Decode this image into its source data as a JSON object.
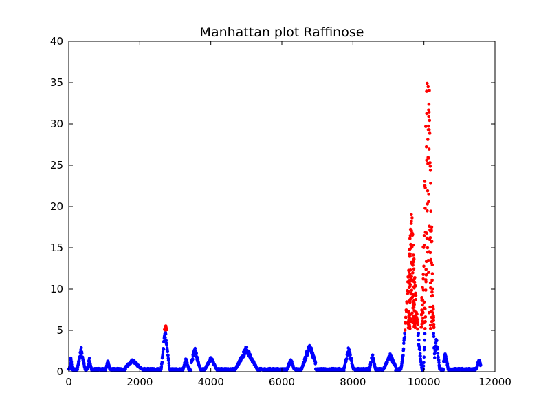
{
  "chart_data": {
    "type": "scatter",
    "title": "Manhattan plot Raffinose",
    "xlabel": "",
    "ylabel": "",
    "xlim": [
      0,
      12000
    ],
    "ylim": [
      0,
      40
    ],
    "x_ticks": [
      0,
      2000,
      4000,
      6000,
      8000,
      10000,
      12000
    ],
    "y_ticks": [
      0,
      5,
      10,
      15,
      20,
      25,
      30,
      35,
      40
    ],
    "grid": false,
    "legend": "none",
    "marker_count": 11600,
    "colors": {
      "below_threshold": "#0000ff",
      "above_threshold": "#ff0000"
    },
    "threshold": 5,
    "peaks": [
      {
        "x_start": 0,
        "x_end": 100,
        "peak_x": 60,
        "peak_y": 1.9
      },
      {
        "x_start": 250,
        "x_end": 500,
        "peak_x": 350,
        "peak_y": 3.0
      },
      {
        "x_start": 500,
        "x_end": 650,
        "peak_x": 580,
        "peak_y": 1.7
      },
      {
        "x_start": 1050,
        "x_end": 1200,
        "peak_x": 1100,
        "peak_y": 1.5
      },
      {
        "x_start": 1600,
        "x_end": 2300,
        "peak_x": 1800,
        "peak_y": 1.5
      },
      {
        "x_start": 2600,
        "x_end": 2850,
        "peak_x": 2720,
        "peak_y": 5.6
      },
      {
        "x_start": 3200,
        "x_end": 3400,
        "peak_x": 3300,
        "peak_y": 1.7
      },
      {
        "x_start": 3450,
        "x_end": 3800,
        "peak_x": 3550,
        "peak_y": 3.0
      },
      {
        "x_start": 3800,
        "x_end": 4200,
        "peak_x": 4000,
        "peak_y": 1.9
      },
      {
        "x_start": 4700,
        "x_end": 5400,
        "peak_x": 5000,
        "peak_y": 3.1
      },
      {
        "x_start": 6150,
        "x_end": 6400,
        "peak_x": 6250,
        "peak_y": 1.6
      },
      {
        "x_start": 6450,
        "x_end": 6950,
        "peak_x": 6780,
        "peak_y": 3.6
      },
      {
        "x_start": 7750,
        "x_end": 8050,
        "peak_x": 7880,
        "peak_y": 3.1
      },
      {
        "x_start": 8450,
        "x_end": 8650,
        "peak_x": 8550,
        "peak_y": 2.2
      },
      {
        "x_start": 8750,
        "x_end": 9200,
        "peak_x": 9050,
        "peak_y": 2.2
      },
      {
        "x_start": 9300,
        "x_end": 9950,
        "peak_x": 9650,
        "peak_y": 20.5
      },
      {
        "x_start": 9950,
        "x_end": 10300,
        "peak_x": 10150,
        "peak_y": 38.8
      },
      {
        "x_start": 10300,
        "x_end": 10500,
        "peak_x": 10350,
        "peak_y": 4.3
      },
      {
        "x_start": 10550,
        "x_end": 10750,
        "peak_x": 10600,
        "peak_y": 2.5
      },
      {
        "x_start": 11400,
        "x_end": 11600,
        "peak_x": 11550,
        "peak_y": 1.6
      }
    ],
    "highlighted_clusters": [
      {
        "x_start": 2700,
        "x_end": 2760,
        "y_values": [
          5.0,
          5.6
        ]
      },
      {
        "x_start": 9550,
        "x_end": 9750,
        "y_values": [
          5.2,
          20.5
        ]
      },
      {
        "x_start": 9920,
        "x_end": 10280,
        "y_values": [
          5.2,
          38.8
        ]
      }
    ]
  }
}
